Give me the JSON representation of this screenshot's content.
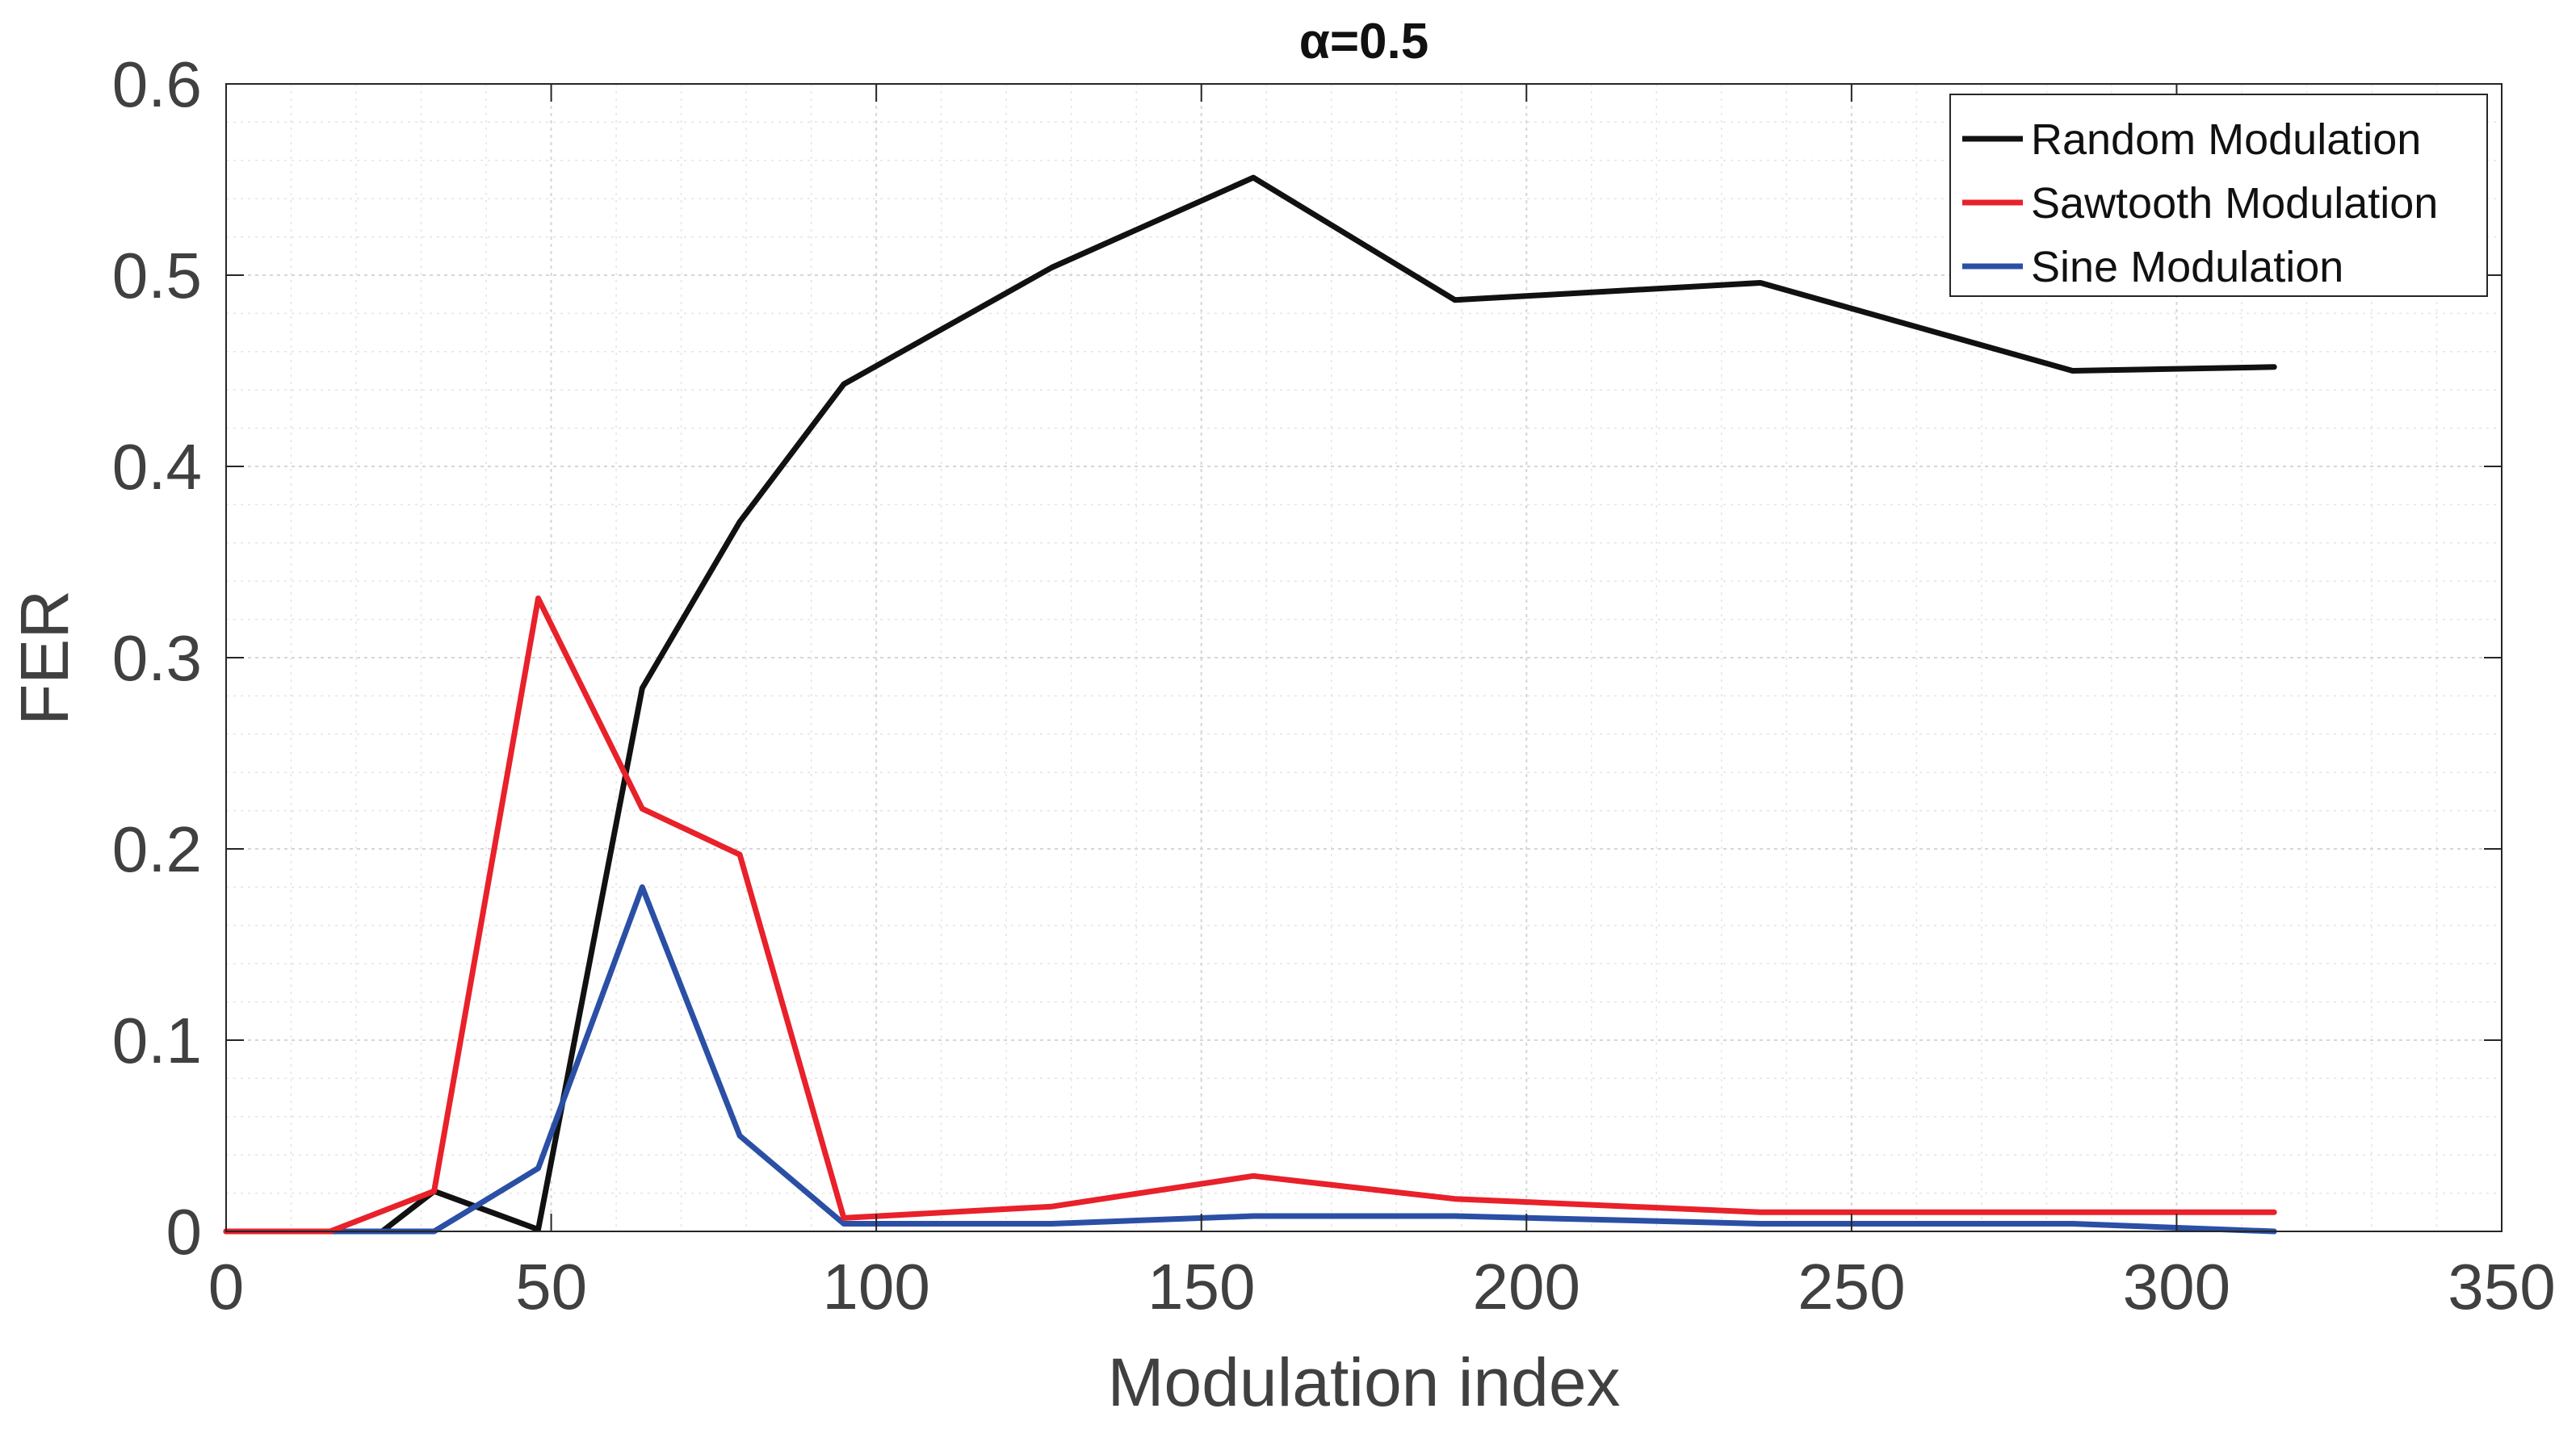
{
  "chart_data": {
    "type": "line",
    "title": "α=0.5",
    "xlabel": "Modulation index",
    "ylabel": "FER",
    "xlim": [
      0,
      350
    ],
    "ylim": [
      0,
      0.6
    ],
    "xticks": [
      0,
      50,
      100,
      150,
      200,
      250,
      300,
      350
    ],
    "yticks": [
      0,
      0.1,
      0.2,
      0.3,
      0.4,
      0.5,
      0.6
    ],
    "xtick_labels": [
      "0",
      "50",
      "100",
      "150",
      "200",
      "250",
      "300",
      "350"
    ],
    "ytick_labels": [
      "0",
      "0.1",
      "0.2",
      "0.3",
      "0.4",
      "0.5",
      "0.6"
    ],
    "grid": true,
    "minor_grid": true,
    "legend_position": "top-right",
    "series": [
      {
        "name": "Random Modulation",
        "color": "#111111",
        "x": [
          0,
          8,
          16,
          24,
          32,
          48,
          64,
          79,
          95,
          127,
          158,
          189,
          236,
          284,
          315
        ],
        "y": [
          0,
          0,
          0,
          0,
          0.021,
          0.001,
          0.284,
          0.371,
          0.443,
          0.504,
          0.551,
          0.487,
          0.496,
          0.45,
          0.452
        ]
      },
      {
        "name": "Sawtooth Modulation",
        "color": "#e8212a",
        "x": [
          0,
          8,
          16,
          32,
          48,
          64,
          79,
          95,
          127,
          158,
          189,
          236,
          284,
          315
        ],
        "y": [
          0,
          0,
          0,
          0.021,
          0.331,
          0.221,
          0.197,
          0.007,
          0.013,
          0.029,
          0.017,
          0.01,
          0.01,
          0.01
        ]
      },
      {
        "name": "Sine Modulation",
        "color": "#2a4fa5",
        "x": [
          0,
          8,
          16,
          32,
          48,
          64,
          79,
          95,
          127,
          158,
          189,
          236,
          284,
          315
        ],
        "y": [
          0,
          0,
          0,
          0,
          0.033,
          0.18,
          0.05,
          0.004,
          0.004,
          0.008,
          0.008,
          0.004,
          0.004,
          0
        ]
      }
    ]
  }
}
